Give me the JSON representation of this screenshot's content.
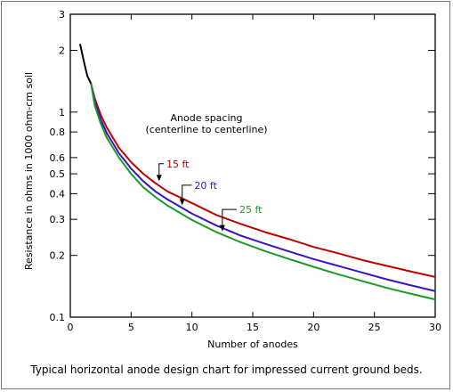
{
  "caption": "Typical horizontal anode design chart for impressed current ground beds.",
  "chart_data": {
    "type": "line",
    "xlabel": "Number of anodes",
    "ylabel": "Resistance in ohms in 1000 ohm-cm soil",
    "xlim": [
      0,
      30
    ],
    "ylim": [
      0.1,
      3
    ],
    "yscale": "log",
    "grid": false,
    "x_ticks": [
      0,
      5,
      10,
      15,
      20,
      25,
      30
    ],
    "y_ticks": [
      0.1,
      0.2,
      0.3,
      0.4,
      0.5,
      0.6,
      0.8,
      1,
      2,
      3
    ],
    "annotation_title": "Anode spacing\n(centerline to centerline)",
    "common_start": {
      "color": "#000000",
      "x": [
        0.8,
        1.0,
        1.2,
        1.4,
        1.7
      ],
      "y": [
        2.15,
        1.9,
        1.68,
        1.5,
        1.38
      ]
    },
    "series": [
      {
        "name": "15 ft",
        "color": "#c00000",
        "x": [
          1.7,
          2,
          2.5,
          3,
          4,
          5,
          6,
          7,
          8,
          10,
          12,
          14,
          16,
          18,
          20,
          22,
          24,
          26,
          28,
          30
        ],
        "y": [
          1.38,
          1.17,
          0.97,
          0.84,
          0.67,
          0.57,
          0.5,
          0.45,
          0.41,
          0.36,
          0.315,
          0.285,
          0.26,
          0.24,
          0.22,
          0.205,
          0.19,
          0.178,
          0.167,
          0.157
        ],
        "label_at": [
          7.9,
          0.56
        ],
        "arrow_to": [
          7.3,
          0.465
        ]
      },
      {
        "name": "20 ft",
        "color": "#3a12c8",
        "x": [
          1.7,
          2,
          2.5,
          3,
          4,
          5,
          6,
          7,
          8,
          10,
          12,
          14,
          16,
          18,
          20,
          22,
          24,
          26,
          28,
          30
        ],
        "y": [
          1.38,
          1.12,
          0.92,
          0.79,
          0.63,
          0.53,
          0.46,
          0.41,
          0.375,
          0.32,
          0.28,
          0.25,
          0.228,
          0.209,
          0.192,
          0.178,
          0.165,
          0.153,
          0.143,
          0.134
        ],
        "label_at": [
          10.2,
          0.44
        ],
        "arrow_to": [
          9.2,
          0.355
        ]
      },
      {
        "name": "25 ft",
        "color": "#1a9a2a",
        "x": [
          1.7,
          2,
          2.5,
          3,
          4,
          5,
          6,
          7,
          8,
          10,
          12,
          14,
          16,
          18,
          20,
          22,
          24,
          26,
          28,
          30
        ],
        "y": [
          1.38,
          1.08,
          0.88,
          0.75,
          0.6,
          0.5,
          0.43,
          0.385,
          0.35,
          0.298,
          0.26,
          0.232,
          0.21,
          0.192,
          0.176,
          0.162,
          0.15,
          0.139,
          0.13,
          0.122
        ],
        "label_at": [
          13.9,
          0.335
        ],
        "arrow_to": [
          12.5,
          0.265
        ]
      }
    ]
  }
}
